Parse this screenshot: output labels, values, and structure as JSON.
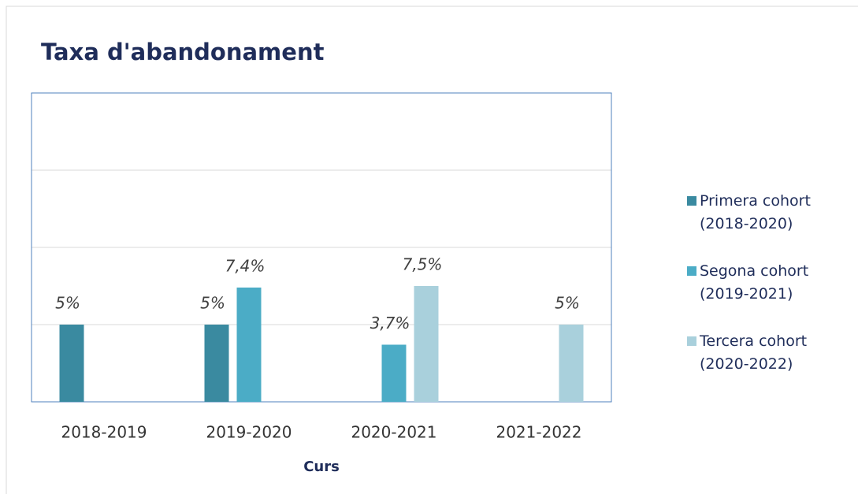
{
  "chart_data": {
    "type": "bar",
    "title": "Taxa d'abandonament",
    "x_label": "Curs",
    "categories": [
      "2018-2019",
      "2019-2020",
      "2020-2021",
      "2021-2022"
    ],
    "series": [
      {
        "name": "Primera cohort (2018-2020)",
        "color": "#3a8aa0",
        "values": [
          5,
          5,
          null,
          null
        ],
        "value_labels": [
          "5%",
          "5%",
          null,
          null
        ]
      },
      {
        "name": "Segona cohort (2019-2021)",
        "color": "#4bacc6",
        "values": [
          null,
          7.4,
          3.7,
          null
        ],
        "value_labels": [
          null,
          "7,4%",
          "3,7%",
          null
        ]
      },
      {
        "name": "Tercera cohort (2020-2022)",
        "color": "#a9d0dc",
        "values": [
          null,
          null,
          7.5,
          5
        ],
        "value_labels": [
          null,
          null,
          "7,5%",
          "5%"
        ]
      }
    ],
    "ylim": [
      0,
      20
    ],
    "yticks": [
      0,
      5,
      10,
      15,
      20
    ],
    "grid": true,
    "legend": "right"
  }
}
